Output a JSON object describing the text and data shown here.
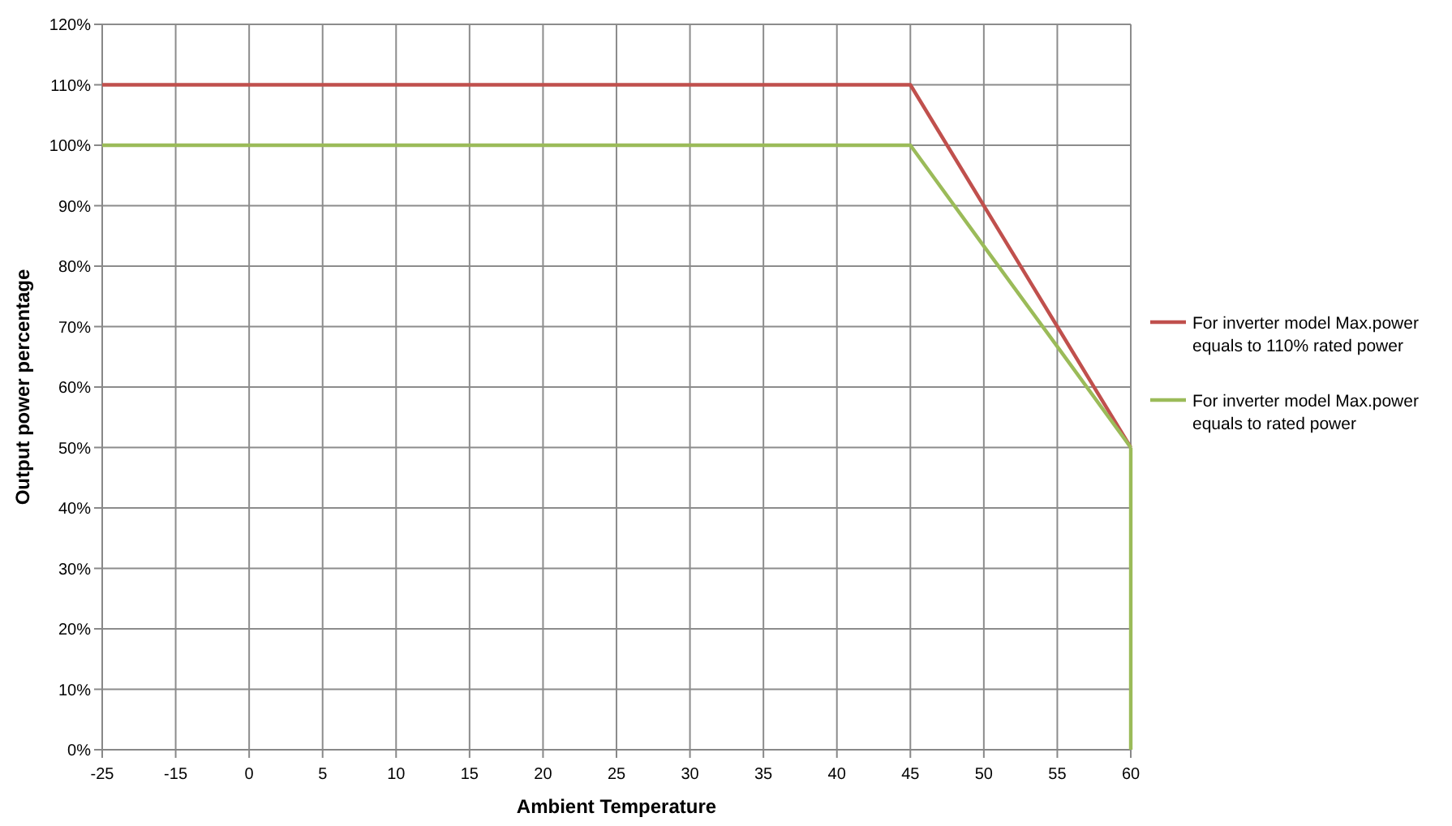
{
  "chart_data": {
    "type": "line",
    "xlabel": "Ambient Temperature",
    "ylabel": "Output power percentage",
    "categories": [
      "-25",
      "-15",
      "0",
      "5",
      "10",
      "15",
      "20",
      "25",
      "30",
      "35",
      "40",
      "45",
      "50",
      "55",
      "60"
    ],
    "ylim": [
      0,
      120
    ],
    "yticks": [
      {
        "value": 0,
        "label": "0%"
      },
      {
        "value": 10,
        "label": "10%"
      },
      {
        "value": 20,
        "label": "20%"
      },
      {
        "value": 30,
        "label": "30%"
      },
      {
        "value": 40,
        "label": "40%"
      },
      {
        "value": 50,
        "label": "50%"
      },
      {
        "value": 60,
        "label": "60%"
      },
      {
        "value": 70,
        "label": "70%"
      },
      {
        "value": 80,
        "label": "80%"
      },
      {
        "value": 90,
        "label": "90%"
      },
      {
        "value": 100,
        "label": "100%"
      },
      {
        "value": 110,
        "label": "110%"
      },
      {
        "value": 120,
        "label": "120%"
      }
    ],
    "grid": true,
    "legend": "right",
    "line_style": "solid",
    "series": [
      {
        "name": "For inverter model Max.power equals to 110% rated power",
        "color": "#c0504d",
        "values": [
          110,
          110,
          110,
          110,
          110,
          110,
          110,
          110,
          110,
          110,
          110,
          110,
          90,
          70,
          50
        ]
      },
      {
        "name": "For inverter model Max.power equals to rated power",
        "color": "#9bbb59",
        "values": [
          100,
          100,
          100,
          100,
          100,
          100,
          100,
          100,
          100,
          100,
          100,
          100,
          83.3,
          66.7,
          50
        ]
      },
      {
        "type": "line",
        "color": "#9bbb59",
        "x": [
          "60",
          "60"
        ],
        "values": [
          50,
          0
        ]
      }
    ]
  }
}
